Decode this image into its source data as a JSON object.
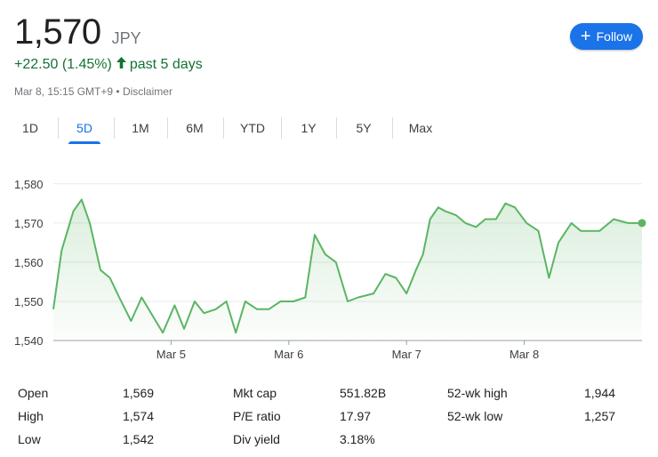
{
  "header": {
    "price": "1,570",
    "currency": "JPY",
    "change": "+22.50 (1.45%)",
    "period": "past 5 days",
    "timestamp": "Mar 8, 15:15 GMT+9",
    "disclaimer": "Disclaimer",
    "follow_label": "Follow"
  },
  "tabs": [
    {
      "label": "1D",
      "active": false
    },
    {
      "label": "5D",
      "active": true
    },
    {
      "label": "1M",
      "active": false
    },
    {
      "label": "6M",
      "active": false
    },
    {
      "label": "YTD",
      "active": false
    },
    {
      "label": "1Y",
      "active": false
    },
    {
      "label": "5Y",
      "active": false
    },
    {
      "label": "Max",
      "active": false
    }
  ],
  "colors": {
    "up": "#137333",
    "line": "#5bb563",
    "accent": "#1a73e8",
    "grid": "#e8eaed"
  },
  "chart_data": {
    "type": "area",
    "y_ticks": [
      "1,580",
      "1,570",
      "1,560",
      "1,550",
      "1,540"
    ],
    "y_tick_values": [
      1580,
      1570,
      1560,
      1550,
      1540
    ],
    "ylim": [
      1540,
      1582
    ],
    "x_tick_labels": [
      "Mar 5",
      "Mar 6",
      "Mar 7",
      "Mar 8"
    ],
    "x_tick_positions": [
      1,
      2,
      3,
      4
    ],
    "xlim": [
      0,
      5
    ],
    "grid": true,
    "series": [
      {
        "x": [
          0.0,
          0.07,
          0.17,
          0.24,
          0.31,
          0.4,
          0.48,
          0.56,
          0.66,
          0.75,
          0.85,
          0.93,
          1.03,
          1.11,
          1.2,
          1.28,
          1.38,
          1.47,
          1.55,
          1.63,
          1.73,
          1.83,
          1.93,
          2.04,
          2.14,
          2.22,
          2.31,
          2.4,
          2.5,
          2.59,
          2.72,
          2.82,
          2.91,
          3.0,
          3.08,
          3.14,
          3.2,
          3.27,
          3.33,
          3.42,
          3.5,
          3.59,
          3.67,
          3.76,
          3.84,
          3.92,
          4.02,
          4.12,
          4.21,
          4.29,
          4.4,
          4.48,
          4.56,
          4.64,
          4.76,
          4.88,
          5.0
        ],
        "values": [
          1548,
          1563,
          1573,
          1576,
          1570,
          1558,
          1556,
          1551,
          1545,
          1551,
          1546,
          1542,
          1549,
          1543,
          1550,
          1547,
          1548,
          1550,
          1542,
          1550,
          1548,
          1548,
          1550,
          1550,
          1551,
          1567,
          1562,
          1560,
          1550,
          1551,
          1552,
          1557,
          1556,
          1552,
          1558,
          1562,
          1571,
          1574,
          1573,
          1572,
          1570,
          1569,
          1571,
          1571,
          1575,
          1574,
          1570,
          1568,
          1556,
          1565,
          1570,
          1568,
          1568,
          1568,
          1571,
          1570,
          1570
        ]
      }
    ]
  },
  "stats": [
    {
      "label": "Open",
      "value": "1,569"
    },
    {
      "label": "High",
      "value": "1,574"
    },
    {
      "label": "Low",
      "value": "1,542"
    },
    {
      "label": "Mkt cap",
      "value": "551.82B"
    },
    {
      "label": "P/E ratio",
      "value": "17.97"
    },
    {
      "label": "Div yield",
      "value": "3.18%"
    },
    {
      "label": "52-wk high",
      "value": "1,944"
    },
    {
      "label": "52-wk low",
      "value": "1,257"
    }
  ]
}
